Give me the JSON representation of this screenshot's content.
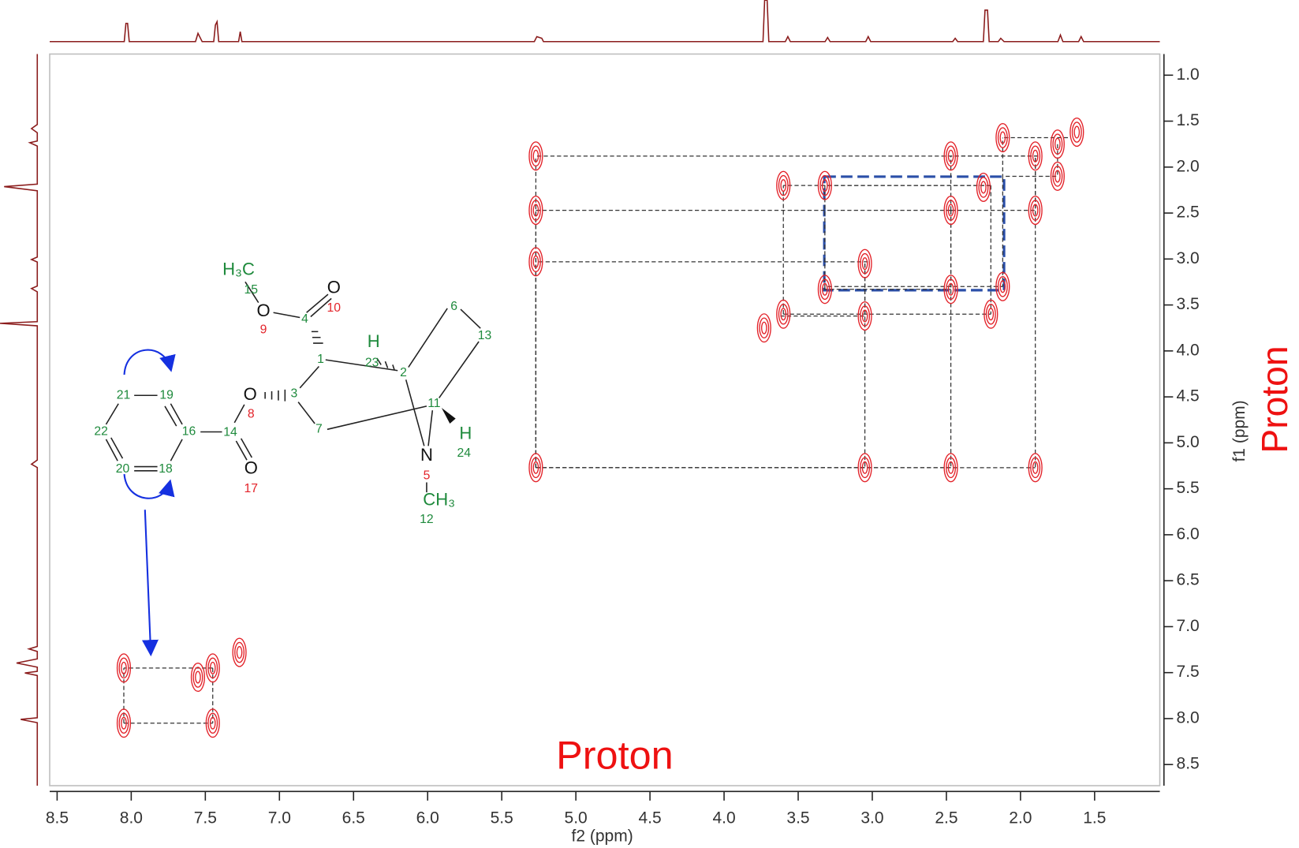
{
  "chart_data": {
    "type": "scatter",
    "xlabel": "f2 (ppm)",
    "ylabel": "f1 (ppm)",
    "x_annotation": "Proton",
    "y_annotation": "Proton",
    "xlim": [
      8.55,
      1.06
    ],
    "ylim": [
      0.77,
      8.73
    ],
    "xticks": [
      8.5,
      {
        "value": 8,
        "label": "8.0"
      },
      7.5,
      {
        "value": 7,
        "label": "7.0"
      },
      6.5,
      {
        "value": 6,
        "label": "6.0"
      },
      5.5,
      {
        "value": 5,
        "label": "5.0"
      },
      4.5,
      {
        "value": 4,
        "label": "4.0"
      },
      3.5,
      {
        "value": 3,
        "label": "3.0"
      },
      2.5,
      {
        "value": 2,
        "label": "2.0"
      },
      1.5
    ],
    "yticks": [
      {
        "value": 1,
        "label": "1.0"
      },
      1.5,
      {
        "value": 2,
        "label": "2.0"
      },
      2.5,
      {
        "value": 3,
        "label": "3.0"
      },
      3.5,
      {
        "value": 4,
        "label": "4.0"
      },
      4.5,
      {
        "value": 5,
        "label": "5.0"
      },
      5.5,
      {
        "value": 6,
        "label": "6.0"
      },
      6.5,
      {
        "value": 7,
        "label": "7.0"
      },
      7.5,
      {
        "value": 8,
        "label": "8.0"
      },
      8.5
    ],
    "color": "#e3232a",
    "x": [
      8.05,
      8.05,
      7.45,
      7.45,
      7.55,
      7.27,
      5.27,
      5.27,
      5.27,
      5.27,
      3.05,
      2.47,
      1.9,
      3.73,
      3.6,
      3.6,
      3.32,
      3.32,
      3.05,
      3.05,
      2.47,
      2.47,
      2.47,
      2.25,
      2.2,
      2.12,
      1.9,
      1.9,
      1.75,
      1.75,
      1.62,
      2.12
    ],
    "y": [
      8.05,
      7.45,
      8.05,
      7.45,
      7.55,
      7.28,
      5.27,
      3.03,
      2.47,
      1.88,
      5.27,
      5.27,
      5.27,
      3.75,
      3.6,
      2.2,
      3.33,
      2.2,
      3.05,
      3.62,
      2.47,
      1.88,
      3.33,
      2.22,
      3.6,
      3.3,
      1.88,
      2.47,
      1.75,
      2.1,
      1.62,
      1.68
    ]
  },
  "structure": {
    "labels": [
      "H₃C",
      "15",
      "O",
      "9",
      "4",
      "O",
      "10",
      "1",
      "H",
      "23",
      "2",
      "6",
      "13",
      "11",
      "H",
      "24",
      "N",
      "5",
      "CH₃",
      "12",
      "3",
      "O",
      "8",
      "7",
      "14",
      "O",
      "17",
      "16",
      "19",
      "21",
      "22",
      "20",
      "18"
    ]
  }
}
